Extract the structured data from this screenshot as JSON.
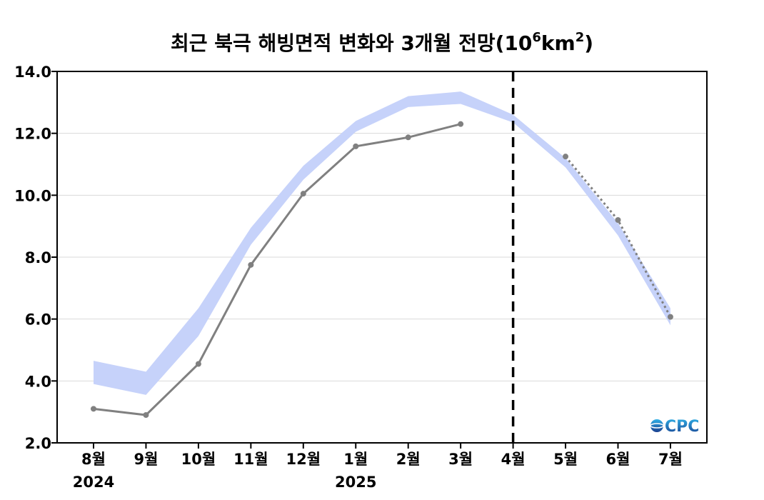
{
  "chart_data": {
    "type": "line",
    "title": "최근 북극 해빙면적 변화와 3개월 전망(10",
    "title_sup1": "6",
    "title_mid": "km",
    "title_sup2": "2",
    "title_end": ")",
    "xlabel": "",
    "ylabel": "",
    "categories": [
      "8월",
      "9월",
      "10월",
      "11월",
      "12월",
      "1월",
      "2월",
      "3월",
      "4월",
      "5월",
      "6월",
      "7월"
    ],
    "year_labels": [
      {
        "category_index": 0,
        "label": "2024"
      },
      {
        "category_index": 5,
        "label": "2025"
      }
    ],
    "ylim": [
      2.0,
      14.0
    ],
    "yticks": [
      2.0,
      4.0,
      6.0,
      8.0,
      10.0,
      12.0,
      14.0
    ],
    "ytick_labels": [
      "2.0",
      "4.0",
      "6.0",
      "8.0",
      "10.0",
      "12.0",
      "14.0"
    ],
    "grid": true,
    "forecast_divider_index": 8,
    "series": [
      {
        "style": "band",
        "color": "#c6d2fa",
        "lower": [
          3.9,
          3.55,
          5.45,
          8.4,
          10.5,
          12.05,
          12.85,
          12.95,
          12.35,
          10.9,
          8.7,
          5.8
        ],
        "upper": [
          4.65,
          4.3,
          6.35,
          8.95,
          10.95,
          12.4,
          13.2,
          13.35,
          12.6,
          11.2,
          9.1,
          6.35
        ]
      },
      {
        "style": "solid",
        "color": "#808080",
        "values": [
          3.1,
          2.9,
          4.55,
          7.75,
          10.05,
          11.58,
          11.87,
          12.3,
          null,
          null,
          null,
          null
        ]
      },
      {
        "style": "dotted",
        "color": "#808080",
        "values": [
          null,
          null,
          null,
          null,
          null,
          null,
          null,
          null,
          null,
          11.25,
          9.2,
          6.07
        ]
      }
    ]
  },
  "logo": {
    "text": "CPC",
    "icon": "globe-icon",
    "color_top": "#2fb0e6",
    "color_bottom": "#1a3f8f"
  }
}
